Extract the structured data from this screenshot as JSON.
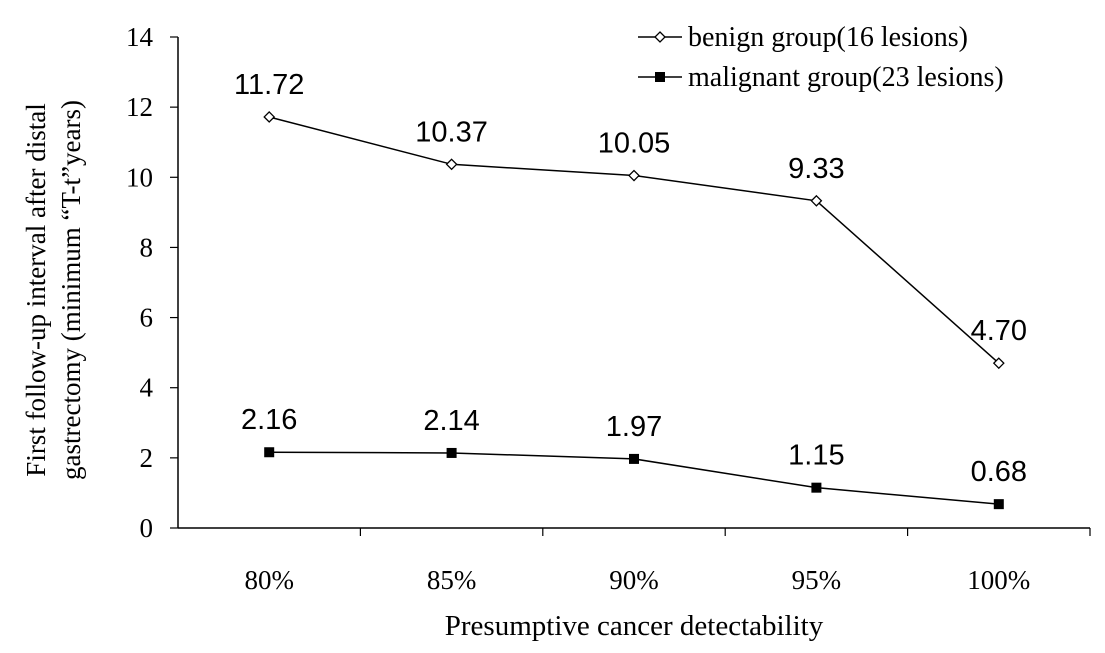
{
  "chart_data": {
    "type": "line",
    "xlabel": "Presumptive cancer detectability",
    "ylabel_lines": [
      "First follow-up  interval after distal",
      "gastrectomy (minimum “T-t”years)"
    ],
    "categories": [
      "80%",
      "85%",
      "90%",
      "95%",
      "100%"
    ],
    "ylim": [
      0,
      14
    ],
    "yticks": [
      0,
      2,
      4,
      6,
      8,
      10,
      12,
      14
    ],
    "grid": false,
    "legend_position": "top-right",
    "series": [
      {
        "name": "benign group(16 lesions)",
        "marker": "open-diamond",
        "values": [
          11.72,
          10.37,
          10.05,
          9.33,
          4.7
        ],
        "labels": [
          "11.72",
          "10.37",
          "10.05",
          "9.33",
          "4.70"
        ]
      },
      {
        "name": "malignant group(23 lesions)",
        "marker": "filled-square",
        "values": [
          2.16,
          2.14,
          1.97,
          1.15,
          0.68
        ],
        "labels": [
          "2.16",
          "2.14",
          "1.97",
          "1.15",
          "0.68"
        ]
      }
    ]
  }
}
